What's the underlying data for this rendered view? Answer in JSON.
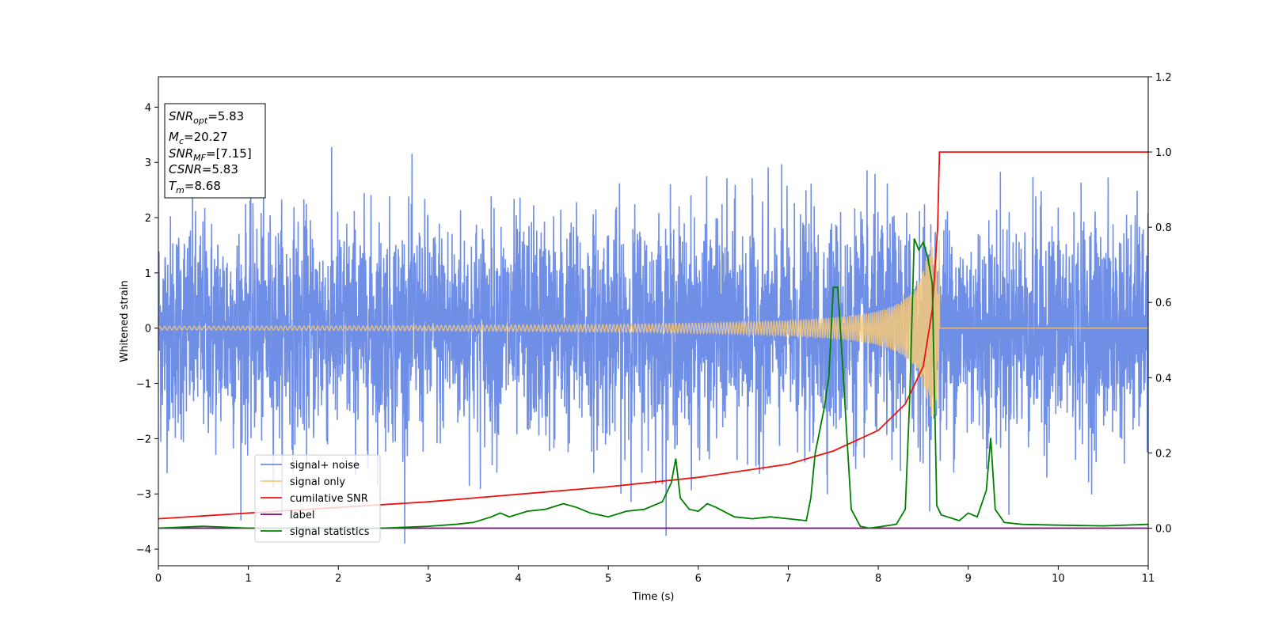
{
  "chart_data": {
    "type": "line",
    "xlabel": "Time (s)",
    "ylabel": "Whitened strain",
    "xlim": [
      0,
      11
    ],
    "ylim_left": [
      -4.3,
      4.55
    ],
    "ylim_right": [
      -0.1,
      1.2
    ],
    "x_ticks": [
      "0",
      "1",
      "2",
      "3",
      "4",
      "5",
      "6",
      "7",
      "8",
      "9",
      "10",
      "11"
    ],
    "y_ticks_left": [
      "−4",
      "−3",
      "−2",
      "−1",
      "0",
      "1",
      "2",
      "3",
      "4"
    ],
    "y_ticks_right": [
      "0.0",
      "0.2",
      "0.4",
      "0.6",
      "0.8",
      "1.0",
      "1.2"
    ],
    "legend_position": "lower-left",
    "info_box": [
      {
        "sym": "SNR",
        "sub": "opt",
        "value": "=5.83"
      },
      {
        "sym": "M",
        "sub": "c",
        "value": "=20.27"
      },
      {
        "sym": "SNR",
        "sub": "MF",
        "value": "=[7.15]"
      },
      {
        "sym": "CSNR",
        "sub": "",
        "value": "=5.83"
      },
      {
        "sym": "T",
        "sub": "m",
        "value": "=8.68"
      }
    ],
    "series": [
      {
        "name": "signal+ noise",
        "color": "#6f8ee6",
        "axis": "left",
        "kind": "gaussian-noise",
        "sigma": 1.0,
        "typical_max": 4.1
      },
      {
        "name": "signal only",
        "color": "#f7c978",
        "axis": "left",
        "kind": "chirp",
        "merger_time": 8.68,
        "peak_amplitude": 1.6
      },
      {
        "name": "cumilative SNR",
        "color": "#ee1111",
        "axis": "right",
        "x": [
          0,
          1,
          2,
          3,
          4,
          5,
          6,
          7,
          7.5,
          8,
          8.3,
          8.5,
          8.6,
          8.66,
          8.68,
          11
        ],
        "y": [
          0.025,
          0.04,
          0.055,
          0.07,
          0.09,
          0.11,
          0.135,
          0.17,
          0.205,
          0.26,
          0.33,
          0.43,
          0.58,
          0.8,
          1.0,
          1.0
        ]
      },
      {
        "name": "label",
        "color": "#800080",
        "axis": "right",
        "x": [
          0,
          11
        ],
        "y": [
          0,
          0
        ]
      },
      {
        "name": "signal statistics",
        "color": "#008000",
        "axis": "right",
        "x": [
          0,
          0.5,
          1,
          1.5,
          2,
          2.5,
          3,
          3.3,
          3.5,
          3.7,
          3.8,
          3.9,
          4.1,
          4.3,
          4.5,
          4.65,
          4.8,
          5,
          5.2,
          5.4,
          5.6,
          5.7,
          5.75,
          5.8,
          5.9,
          6,
          6.1,
          6.2,
          6.4,
          6.6,
          6.8,
          7,
          7.2,
          7.25,
          7.3,
          7.4,
          7.45,
          7.5,
          7.55,
          7.6,
          7.7,
          7.8,
          7.9,
          8,
          8.2,
          8.3,
          8.35,
          8.4,
          8.45,
          8.5,
          8.55,
          8.6,
          8.65,
          8.7,
          8.9,
          9,
          9.1,
          9.2,
          9.25,
          9.3,
          9.4,
          9.6,
          10,
          10.5,
          11
        ],
        "y": [
          0.0,
          0.005,
          0.0,
          0.0,
          0.0,
          0.0,
          0.005,
          0.01,
          0.015,
          0.03,
          0.04,
          0.03,
          0.045,
          0.05,
          0.065,
          0.055,
          0.04,
          0.03,
          0.045,
          0.05,
          0.07,
          0.12,
          0.185,
          0.08,
          0.05,
          0.045,
          0.065,
          0.055,
          0.03,
          0.025,
          0.03,
          0.025,
          0.02,
          0.08,
          0.2,
          0.32,
          0.4,
          0.64,
          0.64,
          0.45,
          0.05,
          0.005,
          0.0,
          0.003,
          0.01,
          0.05,
          0.35,
          0.77,
          0.74,
          0.76,
          0.72,
          0.65,
          0.06,
          0.035,
          0.02,
          0.04,
          0.03,
          0.1,
          0.24,
          0.05,
          0.015,
          0.01,
          0.008,
          0.006,
          0.01
        ]
      }
    ]
  }
}
